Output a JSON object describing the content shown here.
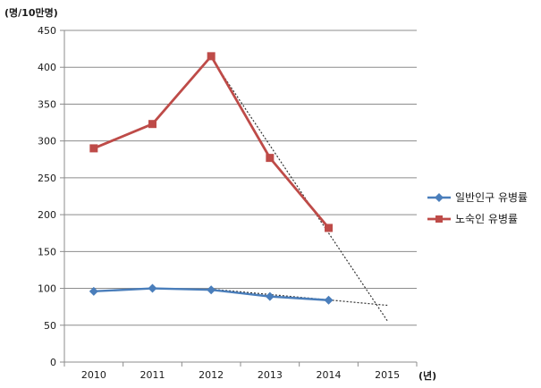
{
  "chart_data": {
    "type": "line",
    "title": "",
    "ylabel": "(명/10만명)",
    "xlabel": "(년)",
    "categories": [
      "2010",
      "2011",
      "2012",
      "2013",
      "2014",
      "2015"
    ],
    "ylim": [
      0,
      450
    ],
    "yticks": [
      0,
      50,
      100,
      150,
      200,
      250,
      300,
      350,
      400,
      450
    ],
    "grid": "horizontal",
    "legend_position": "right",
    "series": [
      {
        "name": "일반인구 유병률",
        "color": "#4a7ebb",
        "marker": "diamond",
        "values": [
          96,
          100,
          98,
          89,
          84,
          null
        ]
      },
      {
        "name": "노숙인 유병률",
        "color": "#be4b48",
        "marker": "square",
        "values": [
          290,
          323,
          415,
          277,
          182,
          null
        ]
      }
    ],
    "trendlines": [
      {
        "series": "일반인구 유병률",
        "style": "dotted",
        "color": "#333333",
        "points": [
          [
            "2012",
            99
          ],
          [
            "2015",
            77
          ]
        ]
      },
      {
        "series": "노숙인 유병률",
        "style": "dotted",
        "color": "#333333",
        "points": [
          [
            "2012",
            413
          ],
          [
            "2015",
            56
          ]
        ]
      }
    ]
  }
}
